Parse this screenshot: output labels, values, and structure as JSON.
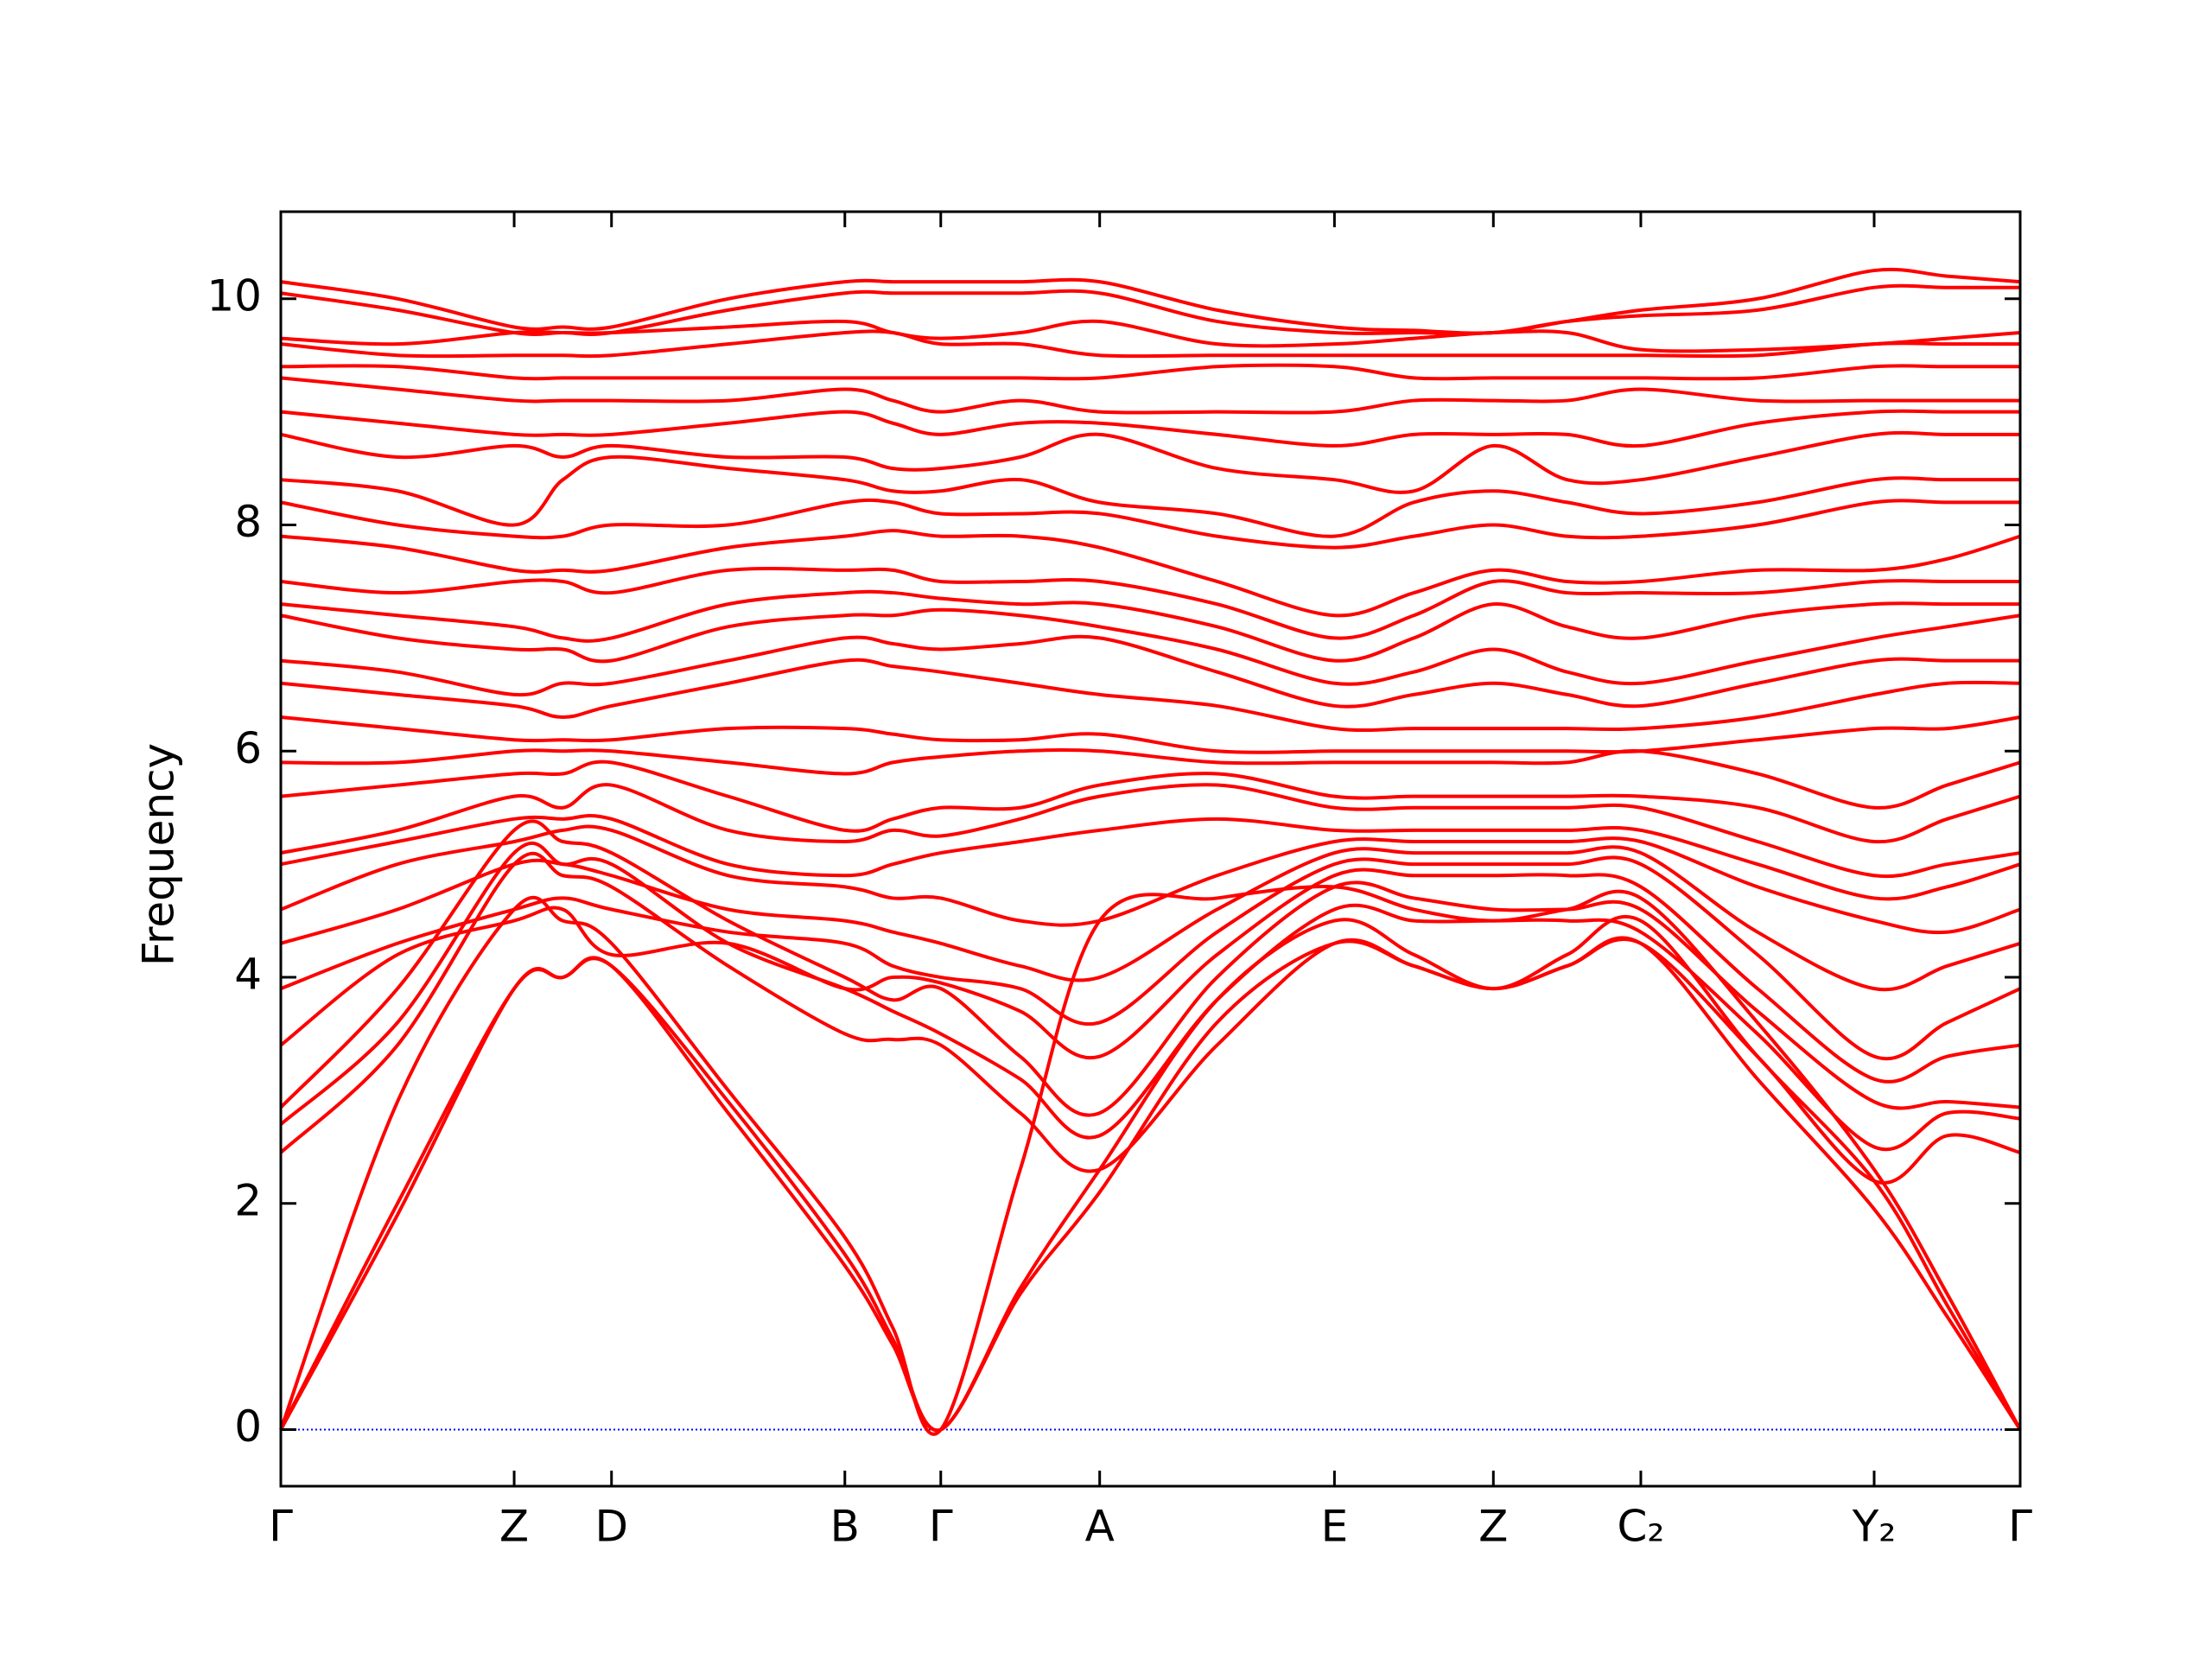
{
  "chart_data": {
    "type": "line",
    "ylabel": "Frequency",
    "color": "#ff0000",
    "hline": {
      "value": 0,
      "color": "#0000ff"
    },
    "xlim": [
      0,
      1.215
    ],
    "ylim": [
      -0.5,
      10.77
    ],
    "xticks": [
      {
        "value": 0,
        "label": "Γ"
      },
      {
        "value": 0.163,
        "label": "Z"
      },
      {
        "value": 0.231,
        "label": "D"
      },
      {
        "value": 0.394,
        "label": "B"
      },
      {
        "value": 0.461,
        "label": "Γ"
      },
      {
        "value": 0.572,
        "label": "A"
      },
      {
        "value": 0.736,
        "label": "E"
      },
      {
        "value": 0.847,
        "label": "Z"
      },
      {
        "value": 0.95,
        "label": "C₂"
      },
      {
        "value": 1.113,
        "label": "Y₂"
      },
      {
        "value": 1.215,
        "label": "Γ"
      }
    ],
    "yticks": [
      0,
      2,
      4,
      6,
      8,
      10
    ],
    "x": [
      0,
      0.0815,
      0.163,
      0.197,
      0.231,
      0.3125,
      0.394,
      0.4275,
      0.461,
      0.5165,
      0.572,
      0.654,
      0.736,
      0.7915,
      0.847,
      0.8985,
      0.95,
      1.0315,
      1.113,
      1.164,
      1.215
    ],
    "series": [
      {
        "values": [
          0,
          1.9,
          3.9,
          4.0,
          4.1,
          2.8,
          1.45,
          0.75,
          0,
          1.2,
          2.1,
          3.6,
          4.3,
          4.1,
          3.9,
          4.1,
          4.3,
          3.1,
          1.95,
          1.0,
          0
        ]
      },
      {
        "values": [
          0,
          2.0,
          3.9,
          4.0,
          4.1,
          2.9,
          1.55,
          0.8,
          0,
          1.25,
          2.3,
          3.8,
          4.5,
          4.2,
          3.9,
          4.2,
          4.5,
          3.3,
          2.2,
          1.1,
          0
        ]
      },
      {
        "values": [
          0,
          2.9,
          4.6,
          4.5,
          4.3,
          3.0,
          1.7,
          0.9,
          0,
          2.3,
          4.5,
          4.7,
          4.8,
          4.6,
          4.5,
          4.6,
          4.7,
          3.6,
          2.3,
          1.2,
          0
        ]
      },
      {
        "values": [
          2.45,
          3.4,
          5.0,
          4.9,
          4.8,
          4.1,
          3.5,
          3.45,
          3.4,
          2.8,
          2.3,
          3.4,
          4.3,
          4.1,
          3.9,
          4.1,
          4.3,
          3.3,
          2.2,
          2.6,
          2.45
        ]
      },
      {
        "values": [
          2.7,
          3.6,
          5.1,
          5.0,
          5.0,
          4.3,
          3.9,
          3.7,
          3.5,
          3.1,
          2.6,
          3.8,
          4.6,
          4.5,
          4.5,
          4.5,
          4.4,
          3.5,
          2.5,
          2.8,
          2.75
        ]
      },
      {
        "values": [
          2.85,
          3.9,
          5.3,
          5.2,
          5.1,
          4.5,
          4.0,
          3.8,
          3.9,
          3.3,
          2.8,
          4.0,
          4.8,
          4.7,
          4.6,
          4.6,
          4.6,
          3.7,
          2.9,
          2.9,
          2.85
        ]
      },
      {
        "values": [
          3.4,
          4.2,
          4.5,
          4.6,
          4.2,
          4.3,
          3.9,
          4.0,
          3.95,
          3.7,
          3.3,
          4.2,
          4.9,
          4.9,
          4.9,
          4.9,
          4.8,
          3.9,
          3.1,
          3.3,
          3.4
        ]
      },
      {
        "values": [
          3.9,
          4.3,
          4.6,
          4.7,
          4.6,
          4.4,
          4.3,
          4.1,
          4.0,
          3.9,
          3.6,
          4.4,
          5.0,
          5.0,
          5.0,
          5.0,
          5.0,
          4.2,
          3.3,
          3.6,
          3.9
        ]
      },
      {
        "values": [
          4.3,
          4.6,
          5.0,
          5.0,
          4.9,
          4.6,
          4.5,
          4.4,
          4.3,
          4.1,
          4.0,
          4.6,
          5.1,
          5.1,
          5.1,
          5.1,
          5.1,
          4.4,
          3.9,
          4.1,
          4.3
        ]
      },
      {
        "values": [
          4.6,
          5.0,
          5.2,
          5.3,
          5.3,
          4.9,
          4.8,
          4.7,
          4.7,
          4.5,
          4.5,
          4.9,
          5.2,
          5.2,
          5.2,
          5.2,
          5.2,
          4.8,
          4.5,
          4.4,
          4.6
        ]
      },
      {
        "values": [
          5.0,
          5.2,
          5.4,
          5.4,
          5.4,
          5.0,
          4.9,
          5.0,
          5.1,
          5.2,
          5.3,
          5.4,
          5.3,
          5.3,
          5.3,
          5.3,
          5.3,
          5.0,
          4.7,
          4.8,
          5.0
        ]
      },
      {
        "values": [
          5.1,
          5.3,
          5.6,
          5.5,
          5.7,
          5.3,
          5.2,
          5.3,
          5.25,
          5.4,
          5.6,
          5.7,
          5.5,
          5.5,
          5.5,
          5.5,
          5.5,
          5.2,
          4.9,
          5.0,
          5.1
        ]
      },
      {
        "values": [
          5.6,
          5.7,
          5.8,
          5.8,
          5.9,
          5.6,
          5.3,
          5.4,
          5.5,
          5.5,
          5.7,
          5.8,
          5.6,
          5.6,
          5.6,
          5.6,
          5.6,
          5.5,
          5.2,
          5.4,
          5.6
        ]
      },
      {
        "values": [
          5.9,
          5.9,
          6.0,
          6.0,
          6.0,
          5.9,
          5.8,
          5.9,
          5.95,
          6.0,
          6.0,
          5.9,
          5.9,
          5.9,
          5.9,
          5.9,
          6.0,
          5.8,
          5.5,
          5.7,
          5.9
        ]
      },
      {
        "values": [
          6.3,
          6.2,
          6.1,
          6.1,
          6.1,
          6.2,
          6.2,
          6.15,
          6.1,
          6.1,
          6.15,
          6.0,
          6.0,
          6.0,
          6.0,
          6.0,
          6.0,
          6.1,
          6.2,
          6.2,
          6.3
        ]
      },
      {
        "values": [
          6.6,
          6.5,
          6.4,
          6.3,
          6.4,
          6.6,
          6.8,
          6.75,
          6.7,
          6.6,
          6.5,
          6.4,
          6.2,
          6.2,
          6.2,
          6.2,
          6.2,
          6.3,
          6.5,
          6.6,
          6.6
        ]
      },
      {
        "values": [
          6.8,
          6.7,
          6.5,
          6.6,
          6.6,
          6.8,
          7.0,
          6.95,
          6.9,
          6.95,
          7.0,
          6.7,
          6.4,
          6.5,
          6.6,
          6.5,
          6.4,
          6.6,
          6.8,
          6.8,
          6.8
        ]
      },
      {
        "values": [
          7.2,
          7.0,
          6.9,
          6.9,
          6.8,
          7.1,
          7.2,
          7.2,
          7.25,
          7.2,
          7.1,
          6.9,
          6.6,
          6.7,
          6.9,
          6.7,
          6.6,
          6.8,
          7.0,
          7.1,
          7.2
        ]
      },
      {
        "values": [
          7.3,
          7.2,
          7.1,
          7.0,
          7.0,
          7.3,
          7.4,
          7.4,
          7.35,
          7.3,
          7.3,
          7.1,
          6.8,
          7.0,
          7.3,
          7.1,
          7.0,
          7.2,
          7.3,
          7.3,
          7.3
        ]
      },
      {
        "values": [
          7.5,
          7.4,
          7.5,
          7.5,
          7.4,
          7.6,
          7.6,
          7.6,
          7.5,
          7.5,
          7.5,
          7.3,
          7.0,
          7.2,
          7.5,
          7.4,
          7.4,
          7.4,
          7.5,
          7.5,
          7.5
        ]
      },
      {
        "values": [
          7.9,
          7.8,
          7.6,
          7.6,
          7.6,
          7.8,
          7.9,
          7.95,
          7.9,
          7.9,
          7.8,
          7.5,
          7.2,
          7.4,
          7.6,
          7.5,
          7.5,
          7.6,
          7.6,
          7.7,
          7.9
        ]
      },
      {
        "values": [
          8.2,
          8.0,
          7.9,
          7.9,
          8.0,
          8.0,
          8.2,
          8.2,
          8.1,
          8.1,
          8.1,
          7.9,
          7.8,
          7.9,
          8.0,
          7.9,
          7.9,
          8.0,
          8.2,
          8.2,
          8.2
        ]
      },
      {
        "values": [
          8.4,
          8.3,
          8.0,
          8.4,
          8.6,
          8.5,
          8.4,
          8.3,
          8.3,
          8.4,
          8.2,
          8.1,
          7.9,
          8.2,
          8.3,
          8.2,
          8.1,
          8.2,
          8.4,
          8.4,
          8.4
        ]
      },
      {
        "values": [
          8.8,
          8.6,
          8.7,
          8.6,
          8.7,
          8.6,
          8.6,
          8.5,
          8.5,
          8.6,
          8.8,
          8.5,
          8.4,
          8.3,
          8.7,
          8.4,
          8.4,
          8.6,
          8.8,
          8.8,
          8.8
        ]
      },
      {
        "values": [
          9.0,
          8.9,
          8.8,
          8.8,
          8.8,
          8.9,
          9.0,
          8.9,
          8.8,
          8.9,
          8.9,
          8.8,
          8.7,
          8.8,
          8.8,
          8.8,
          8.7,
          8.9,
          9.0,
          9.0,
          9.0
        ]
      },
      {
        "values": [
          9.3,
          9.2,
          9.1,
          9.1,
          9.1,
          9.1,
          9.2,
          9.1,
          9.0,
          9.1,
          9.0,
          9.0,
          9.0,
          9.1,
          9.1,
          9.1,
          9.2,
          9.1,
          9.1,
          9.1,
          9.1
        ]
      },
      {
        "values": [
          9.4,
          9.4,
          9.3,
          9.3,
          9.3,
          9.3,
          9.3,
          9.3,
          9.3,
          9.3,
          9.3,
          9.4,
          9.4,
          9.3,
          9.3,
          9.3,
          9.3,
          9.3,
          9.4,
          9.4,
          9.4
        ]
      },
      {
        "values": [
          9.6,
          9.5,
          9.5,
          9.5,
          9.5,
          9.6,
          9.7,
          9.7,
          9.6,
          9.6,
          9.5,
          9.5,
          9.5,
          9.5,
          9.5,
          9.5,
          9.5,
          9.5,
          9.6,
          9.6,
          9.6
        ]
      },
      {
        "values": [
          9.65,
          9.6,
          9.7,
          9.7,
          9.7,
          9.75,
          9.8,
          9.7,
          9.65,
          9.7,
          9.8,
          9.6,
          9.6,
          9.65,
          9.7,
          9.7,
          9.55,
          9.55,
          9.6,
          9.65,
          9.7
        ]
      },
      {
        "values": [
          10.05,
          9.9,
          9.7,
          9.7,
          9.7,
          9.9,
          10.05,
          10.05,
          10.05,
          10.05,
          10.05,
          9.8,
          9.7,
          9.7,
          9.7,
          9.8,
          9.85,
          9.9,
          10.1,
          10.1,
          10.1
        ]
      },
      {
        "values": [
          10.15,
          10.0,
          9.75,
          9.75,
          9.75,
          10.0,
          10.15,
          10.15,
          10.15,
          10.15,
          10.15,
          9.9,
          9.75,
          9.72,
          9.7,
          9.8,
          9.9,
          10.0,
          10.25,
          10.2,
          10.15
        ]
      }
    ]
  }
}
